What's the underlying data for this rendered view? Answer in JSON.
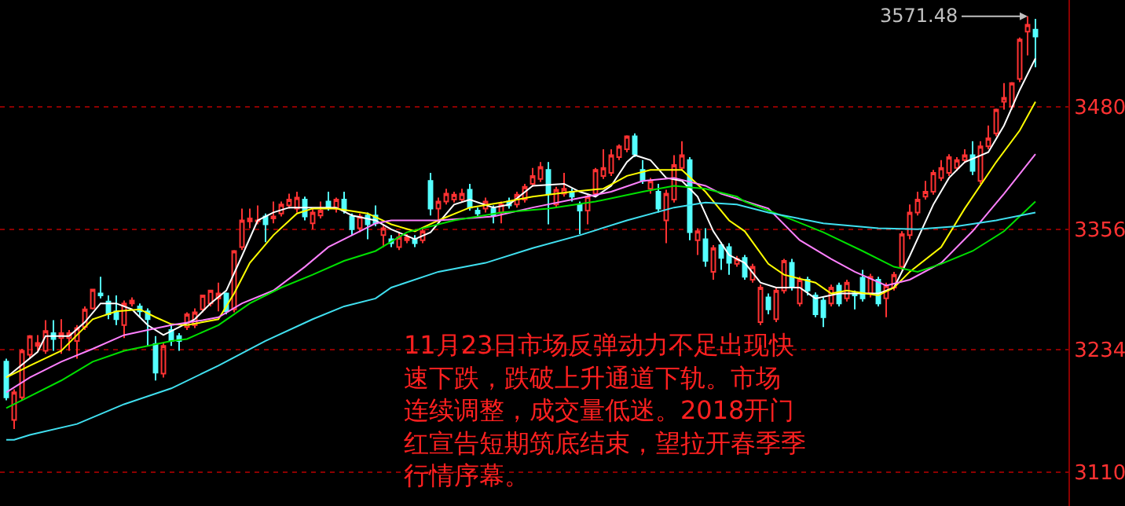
{
  "chart_data": {
    "type": "candlestick",
    "categories": [
      null,
      null,
      null,
      null,
      null,
      null,
      null,
      null,
      null,
      null,
      null,
      null,
      null,
      null,
      null,
      null,
      null,
      null,
      null,
      null,
      null,
      null,
      null,
      null,
      null,
      null,
      null,
      null,
      null,
      null,
      null,
      null,
      null,
      null,
      null,
      null,
      null,
      null,
      null,
      null,
      null,
      null,
      null,
      null,
      null,
      null,
      null,
      null,
      null,
      null,
      null,
      null,
      null,
      null,
      null,
      null,
      null,
      null,
      null,
      null,
      null,
      null,
      null,
      null,
      null,
      null,
      null,
      null,
      null,
      null,
      null,
      null,
      null,
      null,
      null,
      null,
      null,
      null,
      null,
      null,
      null,
      null,
      null,
      null,
      null,
      null,
      null,
      null,
      null,
      null,
      null,
      null,
      null,
      null,
      null,
      null,
      null,
      null,
      null,
      null,
      null,
      null,
      null,
      null,
      null,
      null,
      null,
      null,
      null,
      null,
      null,
      null,
      null,
      null,
      null,
      null,
      null,
      null,
      null,
      null,
      null,
      null,
      null,
      null,
      null,
      null,
      null,
      null,
      null,
      null,
      null,
      null
    ],
    "ohlc": [
      [
        3222,
        3225,
        3183,
        3186
      ],
      [
        3163,
        3194,
        3154,
        3191
      ],
      [
        3186,
        3235,
        3183,
        3233
      ],
      [
        3229,
        3249,
        3225,
        3248
      ],
      [
        3238,
        3249,
        3233,
        3241
      ],
      [
        3233,
        3264,
        3230,
        3253
      ],
      [
        3251,
        3264,
        3233,
        3245
      ],
      [
        3246,
        3265,
        3230,
        3251
      ],
      [
        3246,
        3254,
        3233,
        3251
      ],
      [
        3243,
        3259,
        3225,
        3256
      ],
      [
        3257,
        3278,
        3254,
        3275
      ],
      [
        3276,
        3295,
        3275,
        3295
      ],
      [
        3291,
        3308,
        3286,
        3289
      ],
      [
        3283,
        3289,
        3265,
        3270
      ],
      [
        3273,
        3289,
        3259,
        3265
      ],
      [
        3259,
        3284,
        3246,
        3281
      ],
      [
        3281,
        3287,
        3278,
        3284
      ],
      [
        3278,
        3281,
        3267,
        3273
      ],
      [
        3273,
        3276,
        3238,
        3265
      ],
      [
        3240,
        3248,
        3203,
        3211
      ],
      [
        3210,
        3241,
        3206,
        3238
      ],
      [
        3254,
        3259,
        3238,
        3243
      ],
      [
        3248,
        3251,
        3233,
        3243
      ],
      [
        3257,
        3272,
        3254,
        3270
      ],
      [
        3259,
        3276,
        3256,
        3272
      ],
      [
        3275,
        3289,
        3272,
        3289
      ],
      [
        3281,
        3294,
        3278,
        3294
      ],
      [
        3286,
        3302,
        3273,
        3291
      ],
      [
        3291,
        3292,
        3270,
        3273
      ],
      [
        3275,
        3335,
        3272,
        3334
      ],
      [
        3338,
        3377,
        3335,
        3365
      ],
      [
        3364,
        3377,
        3357,
        3367
      ],
      [
        3364,
        3380,
        3361,
        3365
      ],
      [
        3369,
        3372,
        3343,
        3361
      ],
      [
        3367,
        3384,
        3362,
        3369
      ],
      [
        3372,
        3384,
        3369,
        3381
      ],
      [
        3380,
        3392,
        3377,
        3386
      ],
      [
        3377,
        3394,
        3373,
        3388
      ],
      [
        3386,
        3389,
        3365,
        3369
      ],
      [
        3362,
        3377,
        3356,
        3373
      ],
      [
        3370,
        3384,
        3367,
        3375
      ],
      [
        3384,
        3394,
        3375,
        3378
      ],
      [
        3377,
        3388,
        3373,
        3386
      ],
      [
        3386,
        3394,
        3372,
        3375
      ],
      [
        3369,
        3372,
        3350,
        3356
      ],
      [
        3357,
        3372,
        3353,
        3369
      ],
      [
        3370,
        3373,
        3346,
        3361
      ],
      [
        3370,
        3380,
        3359,
        3362
      ],
      [
        3350,
        3361,
        3338,
        3357
      ],
      [
        3346,
        3350,
        3338,
        3342
      ],
      [
        3338,
        3353,
        3335,
        3348
      ],
      [
        3345,
        3351,
        3342,
        3348
      ],
      [
        3346,
        3350,
        3338,
        3342
      ],
      [
        3345,
        3357,
        3342,
        3354
      ],
      [
        3405,
        3413,
        3370,
        3377
      ],
      [
        3377,
        3388,
        3362,
        3384
      ],
      [
        3384,
        3397,
        3381,
        3392
      ],
      [
        3386,
        3394,
        3383,
        3391
      ],
      [
        3386,
        3397,
        3383,
        3392
      ],
      [
        3396,
        3402,
        3375,
        3378
      ],
      [
        3375,
        3378,
        3369,
        3372
      ],
      [
        3377,
        3388,
        3373,
        3384
      ],
      [
        3377,
        3380,
        3362,
        3370
      ],
      [
        3373,
        3384,
        3362,
        3381
      ],
      [
        3384,
        3388,
        3377,
        3380
      ],
      [
        3381,
        3394,
        3378,
        3391
      ],
      [
        3386,
        3402,
        3383,
        3399
      ],
      [
        3402,
        3418,
        3399,
        3410
      ],
      [
        3407,
        3424,
        3404,
        3419
      ],
      [
        3416,
        3424,
        3361,
        3392
      ],
      [
        3381,
        3399,
        3378,
        3396
      ],
      [
        3392,
        3413,
        3389,
        3397
      ],
      [
        3394,
        3397,
        3384,
        3389
      ],
      [
        3381,
        3384,
        3351,
        3375
      ],
      [
        3375,
        3392,
        3361,
        3389
      ],
      [
        3392,
        3418,
        3389,
        3416
      ],
      [
        3410,
        3437,
        3407,
        3418
      ],
      [
        3413,
        3437,
        3410,
        3431
      ],
      [
        3429,
        3442,
        3426,
        3440
      ],
      [
        3437,
        3451,
        3434,
        3450
      ],
      [
        3450,
        3453,
        3429,
        3432
      ],
      [
        3416,
        3426,
        3402,
        3405
      ],
      [
        3397,
        3408,
        3392,
        3405
      ],
      [
        3394,
        3402,
        3373,
        3377
      ],
      [
        3365,
        3396,
        3342,
        3392
      ],
      [
        3386,
        3431,
        3383,
        3421
      ],
      [
        3418,
        3445,
        3415,
        3431
      ],
      [
        3426,
        3429,
        3345,
        3353
      ],
      [
        3345,
        3357,
        3330,
        3354
      ],
      [
        3346,
        3357,
        3318,
        3324
      ],
      [
        3313,
        3340,
        3305,
        3337
      ],
      [
        3340,
        3343,
        3315,
        3327
      ],
      [
        3338,
        3342,
        3310,
        3322
      ],
      [
        3321,
        3329,
        3318,
        3326
      ],
      [
        3327,
        3330,
        3305,
        3308
      ],
      [
        3305,
        3321,
        3302,
        3318
      ],
      [
        3262,
        3300,
        3259,
        3297
      ],
      [
        3287,
        3291,
        3270,
        3275
      ],
      [
        3265,
        3297,
        3262,
        3294
      ],
      [
        3294,
        3326,
        3291,
        3324
      ],
      [
        3322,
        3326,
        3294,
        3297
      ],
      [
        3281,
        3308,
        3278,
        3305
      ],
      [
        3305,
        3308,
        3289,
        3294
      ],
      [
        3289,
        3292,
        3267,
        3270
      ],
      [
        3284,
        3287,
        3257,
        3267
      ],
      [
        3281,
        3300,
        3278,
        3297
      ],
      [
        3299,
        3302,
        3278,
        3281
      ],
      [
        3286,
        3305,
        3283,
        3302
      ],
      [
        3291,
        3294,
        3275,
        3289
      ],
      [
        3307,
        3315,
        3283,
        3286
      ],
      [
        3291,
        3311,
        3287,
        3308
      ],
      [
        3305,
        3308,
        3278,
        3281
      ],
      [
        3286,
        3302,
        3267,
        3299
      ],
      [
        3297,
        3313,
        3294,
        3310
      ],
      [
        3318,
        3354,
        3315,
        3351
      ],
      [
        3350,
        3381,
        3346,
        3373
      ],
      [
        3373,
        3394,
        3370,
        3386
      ],
      [
        3389,
        3405,
        3386,
        3394
      ],
      [
        3394,
        3416,
        3391,
        3413
      ],
      [
        3408,
        3426,
        3405,
        3418
      ],
      [
        3413,
        3432,
        3410,
        3429
      ],
      [
        3418,
        3429,
        3415,
        3426
      ],
      [
        3426,
        3437,
        3423,
        3431
      ],
      [
        3431,
        3445,
        3411,
        3415
      ],
      [
        3405,
        3445,
        3402,
        3440
      ],
      [
        3440,
        3461,
        3437,
        3448
      ],
      [
        3453,
        3478,
        3450,
        3477
      ],
      [
        3485,
        3504,
        3477,
        3489
      ],
      [
        3480,
        3505,
        3477,
        3504
      ],
      [
        3508,
        3550,
        3505,
        3548
      ],
      [
        3556,
        3571.48,
        3532,
        3563
      ],
      [
        3558,
        3569,
        3520,
        3551
      ]
    ],
    "series": [
      {
        "type": "line",
        "color": "#ffffff",
        "values": [
          3206,
          null,
          null,
          null,
          3232,
          3248,
          null,
          null,
          3248,
          null,
          3262,
          null,
          3281,
          null,
          3281,
          null,
          3275,
          null,
          3259,
          null,
          3249,
          null,
          3257,
          null,
          3265,
          null,
          3281,
          null,
          3294,
          null,
          3329,
          null,
          3365,
          null,
          3373,
          null,
          3378,
          null,
          3378,
          null,
          null,
          null,
          3378,
          null,
          3370,
          null,
          null,
          3365,
          null,
          3356,
          null,
          null,
          3346,
          null,
          3353,
          null,
          null,
          3381,
          null,
          3386,
          null,
          null,
          3378,
          null,
          3381,
          null,
          null,
          3400,
          null,
          null,
          null,
          3402,
          null,
          3394,
          null,
          3389,
          null,
          3400,
          null,
          3424,
          3431,
          null,
          3426,
          null,
          3408,
          null,
          3405,
          null,
          3389,
          null,
          3354,
          null,
          3330,
          null,
          3322,
          null,
          3302,
          null,
          3297,
          null,
          null,
          3297,
          null,
          3286,
          null,
          null,
          3291,
          null,
          null,
          3291,
          null,
          3291,
          null,
          3297,
          null,
          3329,
          null,
          null,
          3381,
          null,
          3408,
          null,
          3424,
          null,
          null,
          3434,
          null,
          3461,
          null,
          3497,
          null,
          3529
        ]
      },
      {
        "type": "line",
        "color": "#ffff00",
        "values": [
          3206,
          null,
          null,
          3218,
          null,
          null,
          null,
          3233,
          null,
          3249,
          null,
          3265,
          null,
          null,
          3273,
          null,
          null,
          3275,
          null,
          3267,
          null,
          3260,
          null,
          3259,
          null,
          null,
          null,
          3265,
          null,
          3291,
          null,
          3322,
          null,
          null,
          3350,
          null,
          null,
          3372,
          null,
          3377,
          null,
          null,
          3377,
          null,
          null,
          null,
          3372,
          null,
          null,
          3361,
          null,
          null,
          3354,
          null,
          null,
          3365,
          null,
          null,
          null,
          3378,
          null,
          null,
          null,
          3383,
          null,
          null,
          null,
          3389,
          null,
          null,
          null,
          null,
          3394,
          null,
          null,
          null,
          3397,
          null,
          null,
          3410,
          null,
          null,
          3416,
          null,
          null,
          null,
          3416,
          null,
          null,
          3394,
          null,
          null,
          3365,
          null,
          3354,
          null,
          null,
          3321,
          null,
          3310,
          null,
          null,
          null,
          3302,
          null,
          3291,
          null,
          3294,
          null,
          null,
          null,
          3289,
          null,
          3297,
          null,
          3313,
          null,
          null,
          null,
          3338,
          null,
          null,
          3377,
          null,
          null,
          null,
          3424,
          null,
          null,
          3456,
          null,
          3485
        ]
      },
      {
        "type": "line",
        "color": "#ff80ff",
        "values": [
          3191,
          null,
          null,
          3206,
          null,
          null,
          null,
          3222,
          null,
          null,
          null,
          3235,
          null,
          null,
          null,
          3249,
          null,
          null,
          3254,
          null,
          null,
          3259,
          null,
          null,
          null,
          3264,
          null,
          3267,
          null,
          null,
          3281,
          null,
          null,
          null,
          3294,
          null,
          null,
          null,
          3318,
          null,
          null,
          3338,
          null,
          null,
          null,
          3354,
          null,
          3362,
          null,
          3365,
          null,
          null,
          null,
          null,
          null,
          3365,
          null,
          null,
          null,
          null,
          null,
          null,
          3369,
          null,
          null,
          null,
          null,
          3378,
          null,
          null,
          null,
          null,
          3386,
          null,
          null,
          null,
          null,
          3394,
          null,
          null,
          null,
          3405,
          null,
          null,
          null,
          3408,
          null,
          null,
          null,
          3400,
          null,
          3392,
          null,
          null,
          null,
          null,
          null,
          3377,
          null,
          null,
          null,
          3345,
          null,
          null,
          null,
          3326,
          null,
          null,
          3313,
          null,
          null,
          null,
          3299,
          null,
          null,
          3305,
          null,
          null,
          null,
          3322,
          null,
          null,
          null,
          3354,
          null,
          null,
          null,
          3392,
          null,
          null,
          null,
          3432
        ]
      },
      {
        "type": "line",
        "color": "#00e000",
        "values": [
          3175,
          null,
          null,
          3187,
          null,
          null,
          null,
          3203,
          null,
          null,
          null,
          3222,
          null,
          null,
          null,
          3233,
          null,
          null,
          3238,
          null,
          null,
          3243,
          null,
          3245,
          null,
          null,
          null,
          3259,
          null,
          null,
          null,
          3281,
          null,
          null,
          null,
          3297,
          null,
          null,
          null,
          3310,
          null,
          null,
          null,
          3324,
          null,
          null,
          null,
          3334,
          null,
          null,
          null,
          3353,
          null,
          null,
          null,
          null,
          null,
          3365,
          null,
          null,
          null,
          null,
          null,
          3373,
          null,
          null,
          null,
          null,
          null,
          3377,
          null,
          null,
          null,
          null,
          null,
          3384,
          null,
          null,
          null,
          null,
          null,
          3394,
          null,
          null,
          null,
          3400,
          null,
          null,
          null,
          3397,
          null,
          null,
          null,
          3389,
          3384,
          null,
          null,
          null,
          null,
          3369,
          null,
          null,
          null,
          null,
          3353,
          null,
          null,
          null,
          null,
          3334,
          null,
          null,
          null,
          3318,
          null,
          null,
          3313,
          null,
          null,
          3321,
          null,
          null,
          null,
          3334,
          null,
          null,
          null,
          3354,
          null,
          null,
          null,
          3384
        ]
      },
      {
        "type": "line",
        "color": "#40e0f0",
        "values": [
          3143,
          3143,
          null,
          3148,
          null,
          null,
          null,
          null,
          null,
          3159,
          null,
          null,
          null,
          null,
          null,
          3179,
          null,
          null,
          null,
          null,
          null,
          3195,
          null,
          null,
          null,
          null,
          null,
          3218,
          null,
          null,
          null,
          null,
          null,
          3243,
          null,
          null,
          null,
          null,
          null,
          3265,
          null,
          null,
          null,
          3278,
          null,
          null,
          null,
          3286,
          null,
          3297,
          null,
          null,
          null,
          null,
          null,
          3313,
          null,
          null,
          null,
          null,
          null,
          3322,
          null,
          null,
          null,
          null,
          null,
          3337,
          null,
          null,
          null,
          null,
          null,
          3350,
          null,
          null,
          null,
          null,
          null,
          3365,
          null,
          null,
          null,
          null,
          null,
          3378,
          null,
          null,
          null,
          3383,
          null,
          null,
          null,
          3381,
          null,
          null,
          null,
          3373,
          null,
          null,
          null,
          null,
          null,
          null,
          3362,
          null,
          null,
          null,
          null,
          null,
          null,
          3357,
          null,
          null,
          null,
          null,
          3356,
          null,
          null,
          null,
          null,
          3359,
          null,
          null,
          null,
          null,
          3365,
          null,
          null,
          null,
          null,
          3373
        ]
      }
    ],
    "ylim": [
      3076,
      3588
    ],
    "yticks": [
      3110,
      3234,
      3356,
      3480
    ],
    "grid": "y",
    "tick_labels": "y",
    "annotations": [
      "3571.48",
      "11月23日市场反弹动力不足出现快速下跌，跌破上升通道下轨。市场连续调整，成交量低迷。2018开门红宣告短期筑底结束，望拉开春季季行情序幕。"
    ]
  }
}
